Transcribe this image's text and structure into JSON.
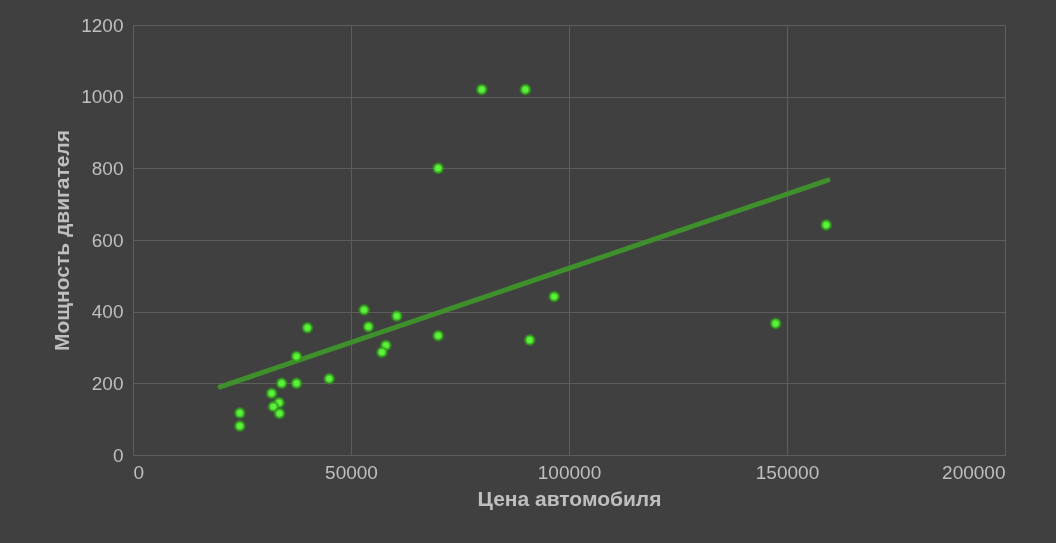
{
  "chart_data": {
    "type": "scatter",
    "xlabel": "Цена автомобиля",
    "ylabel": "Мощность двигателя",
    "xlim": [
      0,
      200000
    ],
    "xticks": [
      0,
      50000,
      100000,
      150000,
      200000
    ],
    "ylim": [
      0,
      1200
    ],
    "yticks": [
      0,
      200,
      400,
      600,
      800,
      1000,
      1200
    ],
    "grid": true,
    "marker": "circle",
    "series": [
      {
        "type": "scatter",
        "color": "#5cf23c",
        "x": [
          24500,
          24500,
          31800,
          33500,
          32200,
          33600,
          34100,
          37500,
          37500,
          40000,
          45000,
          53000,
          54000,
          60500,
          58000,
          57100,
          70000,
          91000,
          96600,
          80000,
          90000,
          70000,
          159000,
          147400
        ],
        "values": [
          117,
          81,
          172,
          146,
          135,
          116,
          200,
          200,
          275,
          355,
          213,
          405,
          358,
          388,
          306,
          287,
          333,
          321,
          442,
          1020,
          1020,
          800,
          642,
          367
        ]
      },
      {
        "type": "line",
        "color": "#3f8f2c",
        "line_style": "solid",
        "marker": "none",
        "x": [
          20000,
          159400
        ],
        "values": [
          190,
          767
        ]
      }
    ]
  }
}
